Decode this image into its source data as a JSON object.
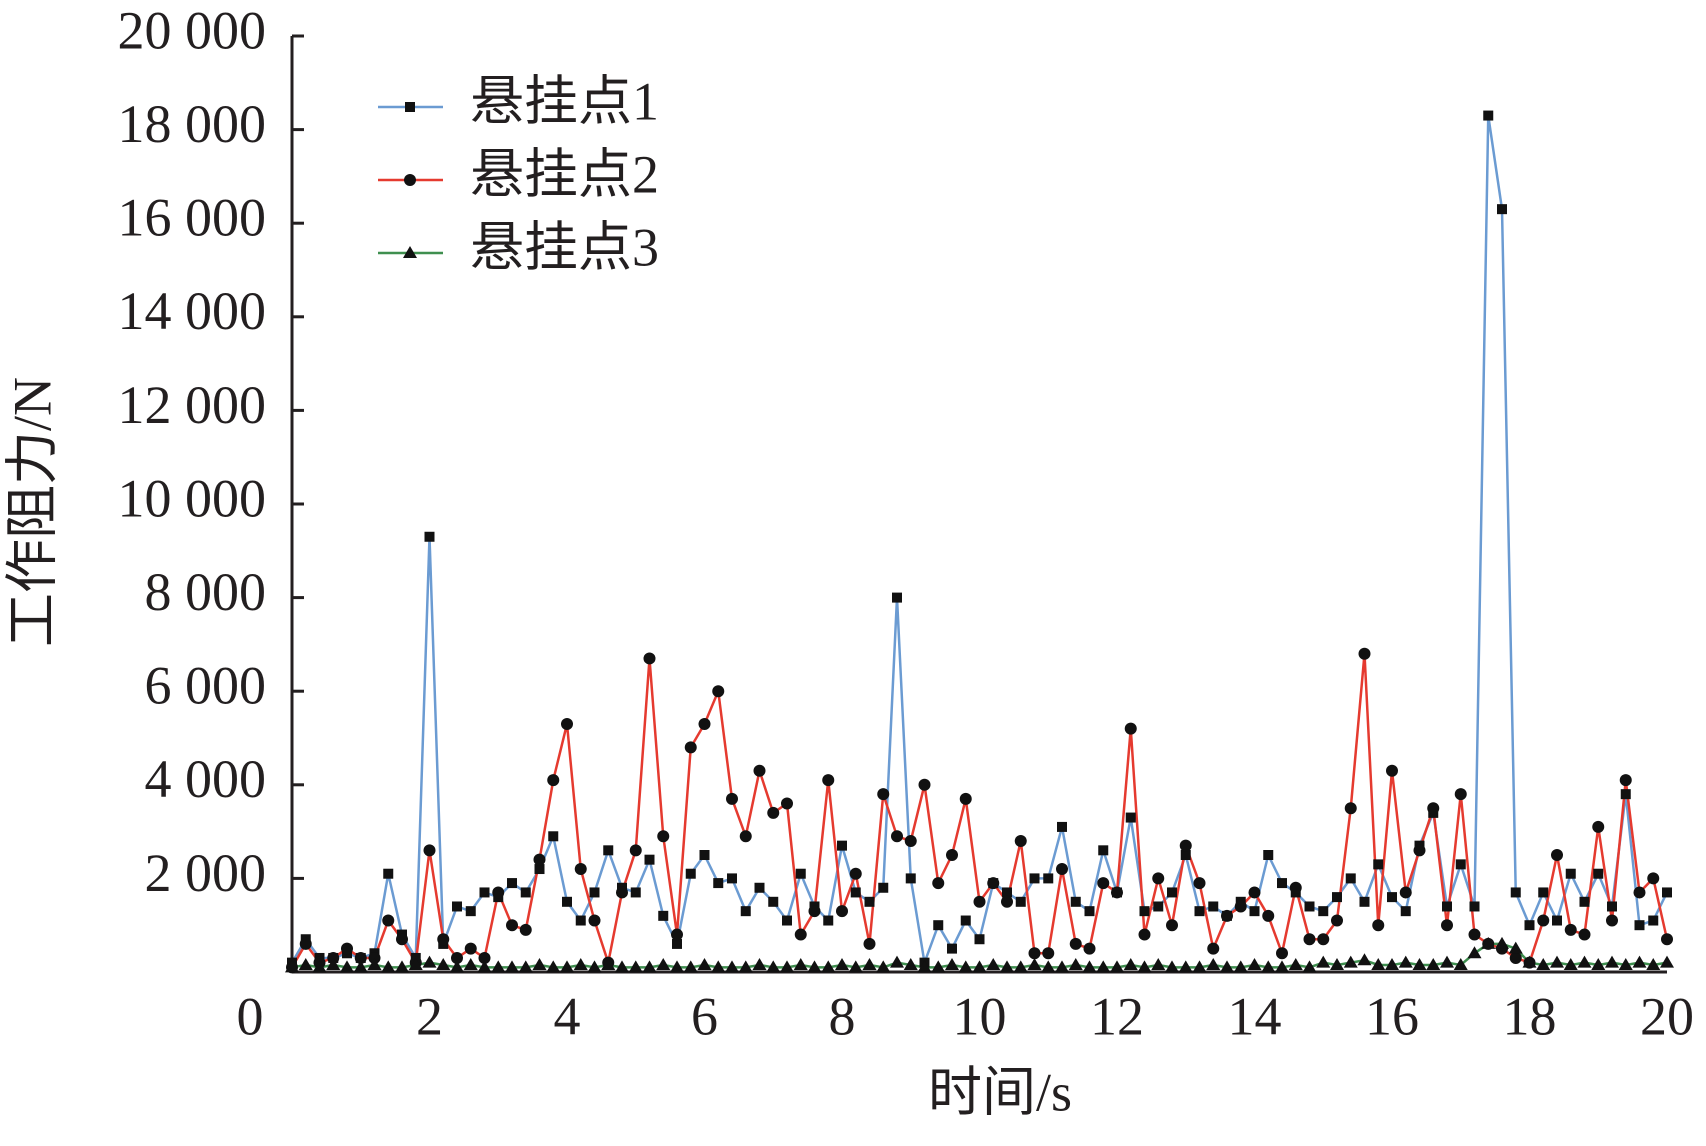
{
  "chart_data": {
    "type": "line",
    "xlabel": "时间/s",
    "ylabel": "工作阻力/N",
    "x": [
      0,
      0.2,
      0.4,
      0.6,
      0.8,
      1,
      1.2,
      1.4,
      1.6,
      1.8,
      2,
      2.2,
      2.4,
      2.6,
      2.8,
      3,
      3.2,
      3.4,
      3.6,
      3.8,
      4,
      4.2,
      4.4,
      4.6,
      4.8,
      5,
      5.2,
      5.4,
      5.6,
      5.8,
      6,
      6.2,
      6.4,
      6.6,
      6.8,
      7,
      7.2,
      7.4,
      7.6,
      7.8,
      8,
      8.2,
      8.4,
      8.6,
      8.8,
      9,
      9.2,
      9.4,
      9.6,
      9.8,
      10,
      10.2,
      10.4,
      10.6,
      10.8,
      11,
      11.2,
      11.4,
      11.6,
      11.8,
      12,
      12.2,
      12.4,
      12.6,
      12.8,
      13,
      13.2,
      13.4,
      13.6,
      13.8,
      14,
      14.2,
      14.4,
      14.6,
      14.8,
      15,
      15.2,
      15.4,
      15.6,
      15.8,
      16,
      16.2,
      16.4,
      16.6,
      16.8,
      17,
      17.2,
      17.4,
      17.6,
      17.8,
      18,
      18.2,
      18.4,
      18.6,
      18.8,
      19,
      19.2,
      19.4,
      19.6,
      19.8,
      20
    ],
    "series": [
      {
        "name": "悬挂点1",
        "color": "#6b9bd2",
        "marker": "square",
        "values": [
          200,
          700,
          300,
          300,
          400,
          300,
          400,
          2100,
          800,
          300,
          9300,
          600,
          1400,
          1300,
          1700,
          1600,
          1900,
          1700,
          2200,
          2900,
          1500,
          1100,
          1700,
          2600,
          1800,
          1700,
          2400,
          1200,
          600,
          2100,
          2500,
          1900,
          2000,
          1300,
          1800,
          1500,
          1100,
          2100,
          1400,
          1100,
          2700,
          1700,
          1500,
          1800,
          8000,
          2000,
          200,
          1000,
          500,
          1100,
          700,
          1900,
          1700,
          1500,
          2000,
          2000,
          3100,
          1500,
          1300,
          2600,
          1700,
          3300,
          1300,
          1400,
          1700,
          2500,
          1300,
          1400,
          1200,
          1500,
          1300,
          2500,
          1900,
          1700,
          1400,
          1300,
          1600,
          2000,
          1500,
          2300,
          1600,
          1300,
          2700,
          3400,
          1400,
          2300,
          1400,
          18300,
          16300,
          1700,
          1000,
          1700,
          1100,
          2100,
          1500,
          2100,
          1400,
          3800,
          1000,
          1100,
          1700
        ]
      },
      {
        "name": "悬挂点2",
        "color": "#e53a2f",
        "marker": "circle",
        "values": [
          100,
          600,
          200,
          300,
          500,
          300,
          300,
          1100,
          700,
          200,
          2600,
          700,
          300,
          500,
          300,
          1700,
          1000,
          900,
          2400,
          4100,
          5300,
          2200,
          1100,
          200,
          1700,
          2600,
          6700,
          2900,
          800,
          4800,
          5300,
          6000,
          3700,
          2900,
          4300,
          3400,
          3600,
          800,
          1300,
          4100,
          1300,
          2100,
          600,
          3800,
          2900,
          2800,
          4000,
          1900,
          2500,
          3700,
          1500,
          1900,
          1500,
          2800,
          400,
          400,
          2200,
          600,
          500,
          1900,
          1700,
          5200,
          800,
          2000,
          1000,
          2700,
          1900,
          500,
          1200,
          1400,
          1700,
          1200,
          400,
          1800,
          700,
          700,
          1100,
          3500,
          6800,
          1000,
          4300,
          1700,
          2600,
          3500,
          1000,
          3800,
          800,
          600,
          500,
          300,
          200,
          1100,
          2500,
          900,
          800,
          3100,
          1100,
          4100,
          1700,
          2000,
          700
        ]
      },
      {
        "name": "悬挂点3",
        "color": "#3f8f4f",
        "marker": "triangle",
        "values": [
          100,
          150,
          100,
          150,
          100,
          100,
          150,
          100,
          100,
          150,
          200,
          150,
          100,
          150,
          100,
          100,
          100,
          100,
          150,
          100,
          100,
          150,
          100,
          150,
          100,
          100,
          100,
          150,
          100,
          100,
          150,
          100,
          100,
          100,
          150,
          100,
          100,
          150,
          100,
          100,
          150,
          100,
          150,
          100,
          200,
          150,
          100,
          100,
          150,
          100,
          100,
          150,
          100,
          100,
          150,
          100,
          100,
          150,
          100,
          100,
          100,
          150,
          100,
          150,
          100,
          100,
          100,
          150,
          100,
          100,
          150,
          100,
          100,
          150,
          100,
          200,
          150,
          200,
          250,
          150,
          150,
          200,
          150,
          150,
          200,
          150,
          400,
          600,
          600,
          500,
          200,
          150,
          200,
          150,
          200,
          150,
          200,
          150,
          200,
          150,
          200
        ]
      }
    ],
    "xlim": [
      0,
      20
    ],
    "xticks": [
      0,
      2,
      4,
      6,
      8,
      10,
      12,
      14,
      16,
      18,
      20
    ],
    "ylim": [
      0,
      20000
    ],
    "yticks": [
      {
        "value": 2000,
        "label": "2 000"
      },
      {
        "value": 4000,
        "label": "4 000"
      },
      {
        "value": 6000,
        "label": "6 000"
      },
      {
        "value": 8000,
        "label": "8 000"
      },
      {
        "value": 10000,
        "label": "10 000"
      },
      {
        "value": 12000,
        "label": "12 000"
      },
      {
        "value": 14000,
        "label": "14 000"
      },
      {
        "value": 16000,
        "label": "16 000"
      },
      {
        "value": 18000,
        "label": "18 000"
      },
      {
        "value": 20000,
        "label": "20 000"
      }
    ],
    "legend": "upper left",
    "grid": false
  }
}
